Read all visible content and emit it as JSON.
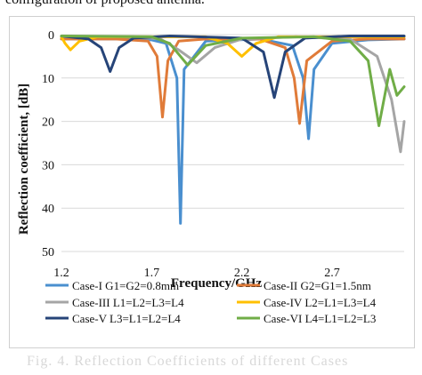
{
  "caption_top": "configuration of proposed antenna.",
  "caption_bottom": "Fig. 4. Reflection Coefficients of different Cases",
  "chart_data": {
    "type": "line",
    "xlabel": "Frequency/GHz",
    "ylabel": "Reflection coefficient, [dB]",
    "xlim": [
      1.2,
      3.1
    ],
    "ylim": [
      -50,
      0
    ],
    "x_ticks": [
      "1.2",
      "1.7",
      "2.2",
      "2.7"
    ],
    "x_tick_values": [
      1.2,
      1.7,
      2.2,
      2.7
    ],
    "y_ticks": [
      "0",
      "10",
      "20",
      "30",
      "40",
      "50"
    ],
    "y_tick_values": [
      0,
      -10,
      -20,
      -30,
      -40,
      -50
    ],
    "grid": "horizontal",
    "legend_position": "bottom",
    "series": [
      {
        "name": "Case-I G1=G2=0.8mm",
        "color": "#4a8fcf",
        "x": [
          1.2,
          1.5,
          1.7,
          1.78,
          1.84,
          1.86,
          1.88,
          2.0,
          2.3,
          2.48,
          2.54,
          2.57,
          2.6,
          2.7,
          2.9,
          3.1
        ],
        "y": [
          -1.0,
          -1.0,
          -1.2,
          -2.0,
          -10,
          -43.5,
          -8,
          -1.5,
          -1.0,
          -2.5,
          -10,
          -24,
          -8,
          -2.0,
          -1.2,
          -1.0
        ]
      },
      {
        "name": "Case-II G2=G1=1.5nm",
        "color": "#e07b39",
        "x": [
          1.2,
          1.5,
          1.68,
          1.73,
          1.76,
          1.79,
          1.85,
          2.0,
          2.3,
          2.44,
          2.49,
          2.52,
          2.56,
          2.7,
          2.9,
          3.1
        ],
        "y": [
          -1.0,
          -1.0,
          -1.5,
          -5,
          -19,
          -6,
          -1.5,
          -1.0,
          -1.0,
          -3,
          -10,
          -20.5,
          -6,
          -1.5,
          -1.0,
          -1.0
        ]
      },
      {
        "name": "Case-III L1=L2=L3=L4",
        "color": "#a5a5a5",
        "x": [
          1.2,
          1.6,
          1.75,
          1.85,
          1.95,
          2.05,
          2.2,
          2.5,
          2.8,
          2.95,
          3.03,
          3.08,
          3.1
        ],
        "y": [
          -0.5,
          -0.5,
          -1.0,
          -3.5,
          -6.5,
          -3,
          -1.0,
          -0.5,
          -1.0,
          -5,
          -15,
          -27,
          -20
        ]
      },
      {
        "name": "Case-IV L2=L1=L3=L4",
        "color": "#ffc000",
        "x": [
          1.2,
          1.22,
          1.25,
          1.3,
          1.4,
          1.6,
          2.0,
          2.12,
          2.2,
          2.28,
          2.4,
          2.8,
          3.1
        ],
        "y": [
          -0.5,
          -2.0,
          -3.5,
          -1.5,
          -0.5,
          -0.5,
          -0.5,
          -2.0,
          -5,
          -2.0,
          -0.5,
          -0.5,
          -0.5
        ]
      },
      {
        "name": "Case-V L3=L1=L2=L4",
        "color": "#264478",
        "x": [
          1.2,
          1.35,
          1.42,
          1.47,
          1.52,
          1.6,
          1.8,
          2.2,
          2.32,
          2.38,
          2.44,
          2.55,
          2.8,
          3.1
        ],
        "y": [
          -0.3,
          -1.0,
          -3,
          -8.5,
          -3,
          -0.8,
          -0.3,
          -0.8,
          -4,
          -14.5,
          -4,
          -0.8,
          -0.3,
          -0.3
        ]
      },
      {
        "name": "Case-VI L4=L1=L2=L3",
        "color": "#70ad47",
        "x": [
          1.2,
          1.7,
          1.8,
          1.9,
          2.0,
          2.2,
          2.6,
          2.8,
          2.9,
          2.96,
          3.02,
          3.06,
          3.1
        ],
        "y": [
          -0.3,
          -0.5,
          -2.0,
          -7,
          -2.5,
          -0.8,
          -0.5,
          -1.5,
          -6,
          -21,
          -8,
          -14,
          -12
        ]
      }
    ]
  }
}
